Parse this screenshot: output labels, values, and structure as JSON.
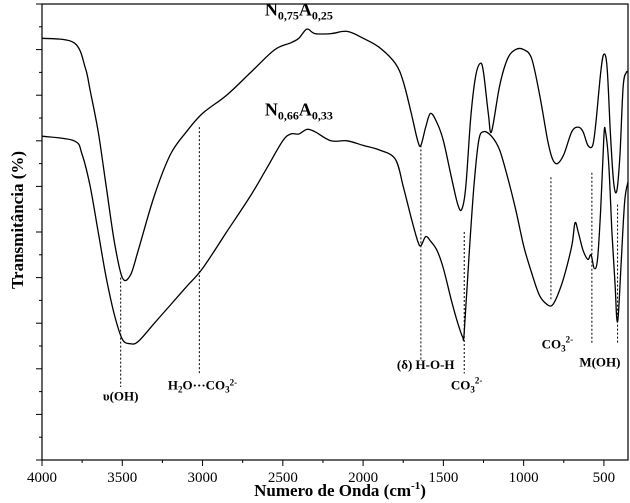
{
  "chart_data": {
    "type": "line",
    "xlabel": "Numero de Onda (cm",
    "xlabel_sup": "-1",
    "xlabel_close": ")",
    "ylabel": "Transmitância (%)",
    "xlim": [
      4000,
      350
    ],
    "x_reversed": true,
    "xticks": [
      4000,
      3500,
      3000,
      2500,
      2000,
      1500,
      1000,
      500
    ],
    "xtick_labels": [
      "4000",
      "3500",
      "3000",
      "2500",
      "2000",
      "1500",
      "1000",
      "500"
    ],
    "y_tick_labels": false,
    "series": [
      {
        "name": "N0,75A0,25",
        "name_parts": {
          "a": "N",
          "a_sub": "0,75",
          "b": "A",
          "b_sub": "0,25"
        },
        "points": [
          [
            4000,
            0.925
          ],
          [
            3800,
            0.915
          ],
          [
            3730,
            0.86
          ],
          [
            3700,
            0.81
          ],
          [
            3650,
            0.72
          ],
          [
            3600,
            0.6
          ],
          [
            3550,
            0.48
          ],
          [
            3500,
            0.4
          ],
          [
            3450,
            0.405
          ],
          [
            3400,
            0.46
          ],
          [
            3300,
            0.58
          ],
          [
            3200,
            0.67
          ],
          [
            3100,
            0.72
          ],
          [
            3000,
            0.76
          ],
          [
            2850,
            0.8
          ],
          [
            2700,
            0.85
          ],
          [
            2550,
            0.9
          ],
          [
            2450,
            0.915
          ],
          [
            2400,
            0.925
          ],
          [
            2350,
            0.945
          ],
          [
            2300,
            0.935
          ],
          [
            2200,
            0.935
          ],
          [
            2100,
            0.94
          ],
          [
            2000,
            0.925
          ],
          [
            1900,
            0.905
          ],
          [
            1800,
            0.87
          ],
          [
            1750,
            0.83
          ],
          [
            1700,
            0.76
          ],
          [
            1660,
            0.7
          ],
          [
            1640,
            0.69
          ],
          [
            1610,
            0.73
          ],
          [
            1580,
            0.76
          ],
          [
            1540,
            0.74
          ],
          [
            1500,
            0.7
          ],
          [
            1450,
            0.62
          ],
          [
            1410,
            0.56
          ],
          [
            1385,
            0.55
          ],
          [
            1360,
            0.6
          ],
          [
            1330,
            0.75
          ],
          [
            1300,
            0.84
          ],
          [
            1270,
            0.87
          ],
          [
            1250,
            0.85
          ],
          [
            1220,
            0.76
          ],
          [
            1200,
            0.72
          ],
          [
            1150,
            0.82
          ],
          [
            1100,
            0.88
          ],
          [
            1050,
            0.9
          ],
          [
            1000,
            0.9
          ],
          [
            950,
            0.88
          ],
          [
            900,
            0.8
          ],
          [
            850,
            0.7
          ],
          [
            820,
            0.66
          ],
          [
            790,
            0.65
          ],
          [
            750,
            0.67
          ],
          [
            700,
            0.72
          ],
          [
            660,
            0.73
          ],
          [
            630,
            0.72
          ],
          [
            600,
            0.69
          ],
          [
            570,
            0.69
          ],
          [
            550,
            0.74
          ],
          [
            520,
            0.85
          ],
          [
            500,
            0.89
          ],
          [
            480,
            0.86
          ],
          [
            460,
            0.72
          ],
          [
            440,
            0.61
          ],
          [
            420,
            0.59
          ],
          [
            400,
            0.67
          ],
          [
            380,
            0.82
          ],
          [
            360,
            0.85
          ],
          [
            350,
            0.85
          ]
        ]
      },
      {
        "name": "N0,66A0,33",
        "name_parts": {
          "a": "N",
          "a_sub": "0,66",
          "b": "A",
          "b_sub": "0,33"
        },
        "points": [
          [
            4000,
            0.71
          ],
          [
            3800,
            0.7
          ],
          [
            3750,
            0.67
          ],
          [
            3700,
            0.6
          ],
          [
            3650,
            0.5
          ],
          [
            3600,
            0.4
          ],
          [
            3550,
            0.32
          ],
          [
            3500,
            0.265
          ],
          [
            3450,
            0.255
          ],
          [
            3400,
            0.26
          ],
          [
            3300,
            0.3
          ],
          [
            3200,
            0.34
          ],
          [
            3100,
            0.38
          ],
          [
            3000,
            0.42
          ],
          [
            2850,
            0.5
          ],
          [
            2700,
            0.58
          ],
          [
            2600,
            0.64
          ],
          [
            2500,
            0.7
          ],
          [
            2450,
            0.715
          ],
          [
            2400,
            0.715
          ],
          [
            2350,
            0.725
          ],
          [
            2300,
            0.72
          ],
          [
            2200,
            0.7
          ],
          [
            2100,
            0.7
          ],
          [
            2000,
            0.69
          ],
          [
            1900,
            0.68
          ],
          [
            1800,
            0.66
          ],
          [
            1750,
            0.6
          ],
          [
            1700,
            0.53
          ],
          [
            1660,
            0.48
          ],
          [
            1640,
            0.47
          ],
          [
            1610,
            0.49
          ],
          [
            1580,
            0.48
          ],
          [
            1540,
            0.46
          ],
          [
            1500,
            0.42
          ],
          [
            1450,
            0.35
          ],
          [
            1410,
            0.3
          ],
          [
            1380,
            0.27
          ],
          [
            1370,
            0.28
          ],
          [
            1340,
            0.45
          ],
          [
            1310,
            0.6
          ],
          [
            1280,
            0.7
          ],
          [
            1250,
            0.72
          ],
          [
            1200,
            0.71
          ],
          [
            1150,
            0.68
          ],
          [
            1100,
            0.62
          ],
          [
            1050,
            0.55
          ],
          [
            1000,
            0.47
          ],
          [
            950,
            0.41
          ],
          [
            900,
            0.36
          ],
          [
            850,
            0.34
          ],
          [
            820,
            0.34
          ],
          [
            790,
            0.36
          ],
          [
            750,
            0.4
          ],
          [
            700,
            0.47
          ],
          [
            680,
            0.52
          ],
          [
            660,
            0.5
          ],
          [
            630,
            0.46
          ],
          [
            600,
            0.44
          ],
          [
            580,
            0.45
          ],
          [
            560,
            0.42
          ],
          [
            540,
            0.44
          ],
          [
            520,
            0.55
          ],
          [
            500,
            0.71
          ],
          [
            490,
            0.72
          ],
          [
            470,
            0.65
          ],
          [
            450,
            0.5
          ],
          [
            430,
            0.38
          ],
          [
            420,
            0.31
          ],
          [
            410,
            0.32
          ],
          [
            390,
            0.45
          ],
          [
            370,
            0.57
          ],
          [
            350,
            0.61
          ]
        ]
      }
    ],
    "series_labels": [
      {
        "series": 0,
        "x": 2400,
        "y": 0.975
      },
      {
        "series": 1,
        "x": 2400,
        "y": 0.755
      }
    ],
    "annotations": [
      {
        "id": "oh",
        "x": 3510,
        "y1": 0.16,
        "y2": 0.4,
        "text": "υ(OH)",
        "tx": 3510,
        "ty": 0.13
      },
      {
        "id": "h2o-co3",
        "x": 3020,
        "y1": 0.19,
        "y2": 0.73,
        "text_main": "H",
        "text_sub1": "2",
        "text_mid": "O···CO",
        "text_sub2": "3",
        "text_sup": "2-",
        "tx": 3000,
        "ty": 0.155
      },
      {
        "id": "hoh",
        "x": 1640,
        "y1": 0.22,
        "y2": 0.69,
        "text": "(δ) H-O-H",
        "tx": 1610,
        "ty": 0.2
      },
      {
        "id": "co3-1",
        "x": 1370,
        "y1": 0.19,
        "y2": 0.5,
        "text_main": "CO",
        "text_sub": "3",
        "text_sup": "2-",
        "tx": 1355,
        "ty": 0.155
      },
      {
        "id": "co3-2",
        "x": 830,
        "y1": 0.35,
        "y2": 0.62,
        "text_main": "CO",
        "text_sub": "3",
        "text_sup": "2-",
        "tx": 790,
        "ty": 0.245
      },
      {
        "id": "moh",
        "x": 575,
        "y1": 0.255,
        "y2": 0.63,
        "text": "M(OH)",
        "tx": 525,
        "ty": 0.205
      },
      {
        "id": "moh2",
        "x": 415,
        "y1": 0.255,
        "y2": 0.56,
        "text": "",
        "tx": 415,
        "ty": 0.2
      }
    ]
  }
}
